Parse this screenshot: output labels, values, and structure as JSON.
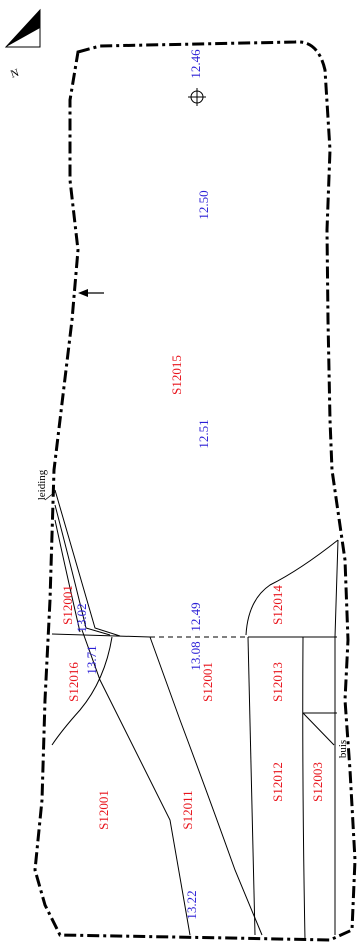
{
  "north_label": "N",
  "colors": {
    "context": "#e8141c",
    "elevation": "#2b1fd6",
    "line": "#000000"
  },
  "context_labels": [
    "S12015",
    "S12001",
    "S12016",
    "S12014",
    "S12001",
    "S12013",
    "S12001",
    "S12011",
    "S12012",
    "S12003"
  ],
  "elevations": [
    "12.46",
    "12.50",
    "12.51",
    "12.49",
    "13.08",
    "13.02",
    "13.71",
    "13.22"
  ],
  "notes": {
    "leiding": "leiding",
    "buis": "buis"
  }
}
